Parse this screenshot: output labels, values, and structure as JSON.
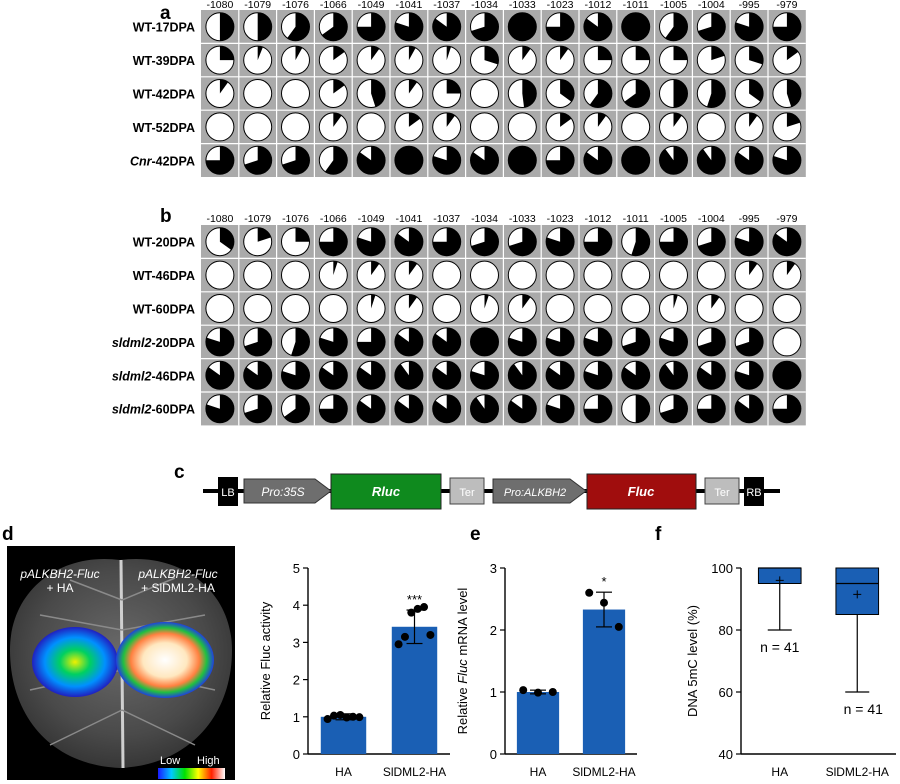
{
  "panels": {
    "a": "a",
    "b": "b",
    "c": "c",
    "d": "d",
    "e": "e",
    "f": "f"
  },
  "positions": [
    "-1080",
    "-1079",
    "-1076",
    "-1066",
    "-1049",
    "-1041",
    "-1037",
    "-1034",
    "-1033",
    "-1023",
    "-1012",
    "-1011",
    "-1005",
    "-1004",
    "-995",
    "-979"
  ],
  "chart_data": [
    {
      "type": "pie",
      "id": "panel-a",
      "rows": [
        {
          "prefix": "WT",
          "italic": false,
          "suffix": "-17DPA",
          "values": [
            0.5,
            0.5,
            0.6,
            0.65,
            0.75,
            0.8,
            0.85,
            0.7,
            1.0,
            0.75,
            0.85,
            1.0,
            0.6,
            0.7,
            0.8,
            0.75
          ]
        },
        {
          "prefix": "WT",
          "italic": false,
          "suffix": "-39DPA",
          "values": [
            0.25,
            0.06,
            0.08,
            0.15,
            0.1,
            0.08,
            0.05,
            0.3,
            0.1,
            0.1,
            0.25,
            0.25,
            0.25,
            0.2,
            0.3,
            0.15
          ]
        },
        {
          "prefix": "WT",
          "italic": false,
          "suffix": "-42DPA",
          "values": [
            0.1,
            0.0,
            0.0,
            0.15,
            0.45,
            0.1,
            0.25,
            0.0,
            0.48,
            0.35,
            0.6,
            0.65,
            0.5,
            0.55,
            0.35,
            0.45
          ]
        },
        {
          "prefix": "WT",
          "italic": false,
          "suffix": "-52DPA",
          "values": [
            0.0,
            0.0,
            0.0,
            0.1,
            0.0,
            0.15,
            0.1,
            0.0,
            0.0,
            0.15,
            0.1,
            0.0,
            0.1,
            0.0,
            0.1,
            0.2
          ]
        },
        {
          "prefix": "Cnr",
          "italic": true,
          "suffix": "-42DPA",
          "values": [
            0.75,
            0.7,
            0.7,
            0.6,
            0.85,
            1.0,
            0.8,
            0.85,
            1.0,
            0.75,
            0.85,
            1.0,
            0.9,
            0.9,
            0.85,
            0.8
          ]
        }
      ]
    },
    {
      "type": "pie",
      "id": "panel-b",
      "rows": [
        {
          "prefix": "WT",
          "italic": false,
          "suffix": "-20DPA",
          "values": [
            0.35,
            0.2,
            0.25,
            0.75,
            0.8,
            0.85,
            0.75,
            0.7,
            0.7,
            0.8,
            0.75,
            0.55,
            0.75,
            0.7,
            0.8,
            0.85
          ]
        },
        {
          "prefix": "WT",
          "italic": false,
          "suffix": "-46DPA",
          "values": [
            0.0,
            0.0,
            0.0,
            0.05,
            0.1,
            0.1,
            0.0,
            0.0,
            0.0,
            0.0,
            0.0,
            0.0,
            0.0,
            0.0,
            0.1,
            0.1
          ]
        },
        {
          "prefix": "WT",
          "italic": false,
          "suffix": "-60DPA",
          "values": [
            0.0,
            0.0,
            0.0,
            0.0,
            0.05,
            0.1,
            0.0,
            0.05,
            0.1,
            0.0,
            0.0,
            0.0,
            0.05,
            0.1,
            0.0,
            0.0
          ]
        },
        {
          "prefix": "sldml2",
          "italic": true,
          "suffix": "-20DPA",
          "values": [
            0.8,
            0.7,
            0.55,
            0.8,
            0.75,
            0.85,
            0.85,
            1.0,
            0.8,
            0.8,
            0.8,
            0.7,
            0.8,
            0.7,
            0.7,
            0.0
          ]
        },
        {
          "prefix": "sldml2",
          "italic": true,
          "suffix": "-46DPA",
          "values": [
            0.85,
            0.85,
            0.8,
            0.85,
            0.85,
            0.9,
            0.85,
            0.8,
            0.9,
            0.85,
            0.8,
            0.85,
            0.9,
            0.85,
            0.8,
            1.0
          ]
        },
        {
          "prefix": "sldml2",
          "italic": true,
          "suffix": "-60DPA",
          "values": [
            0.8,
            0.7,
            0.65,
            0.75,
            0.85,
            0.85,
            0.85,
            0.9,
            0.85,
            0.8,
            0.75,
            0.5,
            0.7,
            0.75,
            0.85,
            0.75
          ]
        }
      ]
    },
    {
      "type": "bar",
      "id": "panel-d-chart",
      "categories": [
        "HA",
        "SlDML2-HA"
      ],
      "values": [
        1.0,
        3.42
      ],
      "errors": [
        0.08,
        0.45
      ],
      "points": [
        [
          0.94,
          1.03,
          1.05,
          0.98,
          1.0,
          0.99
        ],
        [
          2.95,
          3.15,
          3.8,
          3.9,
          3.95,
          3.2
        ]
      ],
      "significance": [
        "",
        "***"
      ],
      "ylabel": "Relative Fluc activity",
      "ylim": [
        0,
        5
      ],
      "yticks": [
        0,
        1,
        2,
        3,
        4,
        5
      ],
      "bar_color": "#1a5fb4"
    },
    {
      "type": "bar",
      "id": "panel-e-chart",
      "categories": [
        "HA",
        "SlDML2-HA"
      ],
      "values": [
        1.0,
        2.33
      ],
      "errors": [
        0.03,
        0.28
      ],
      "points": [
        [
          1.03,
          0.99,
          1.0
        ],
        [
          2.6,
          2.44,
          2.05
        ]
      ],
      "significance": [
        "",
        "*"
      ],
      "ylabel_pre": "Relative ",
      "ylabel_ital": "Fluc",
      "ylabel_post": " mRNA level",
      "ylim": [
        0,
        3
      ],
      "yticks": [
        0,
        1,
        2,
        3
      ],
      "bar_color": "#1a5fb4"
    },
    {
      "type": "box",
      "id": "panel-f-chart",
      "categories": [
        "HA",
        "SlDML2-HA"
      ],
      "boxes": [
        {
          "whisker_low": 80,
          "q1": 95,
          "median": 100,
          "q3": 100,
          "whisker_high": 100,
          "mean": 96,
          "n_label": "n = 41"
        },
        {
          "whisker_low": 60,
          "q1": 85,
          "median": 95,
          "q3": 100,
          "whisker_high": 100,
          "mean": 91.5,
          "n_label": "n = 41"
        }
      ],
      "ylabel": "DNA 5mC level (%)",
      "ylim": [
        40,
        100
      ],
      "yticks": [
        40,
        60,
        80,
        100
      ],
      "box_color": "#1a5fb4"
    }
  ],
  "construct": {
    "lb": "LB",
    "pro35s": "Pro:35S",
    "rluc": "Rluc",
    "ter1": "Ter",
    "proalk": "Pro:ALKBH2",
    "fluc": "Fluc",
    "ter2": "Ter",
    "rb": "RB",
    "colors": {
      "rluc": "#0f8a1e",
      "fluc": "#a00d0d",
      "promoter": "#6e6e6e",
      "ter": "#bdbdbd",
      "border": "#000000"
    }
  },
  "leaf": {
    "left_label_ital": "pALKBH2-Fluc",
    "left_label_plain": "+ HA",
    "right_label_ital": "pALKBH2-Fluc",
    "right_label_plain": "+ SlDML2-HA",
    "scale_low": "Low",
    "scale_high": "High"
  }
}
